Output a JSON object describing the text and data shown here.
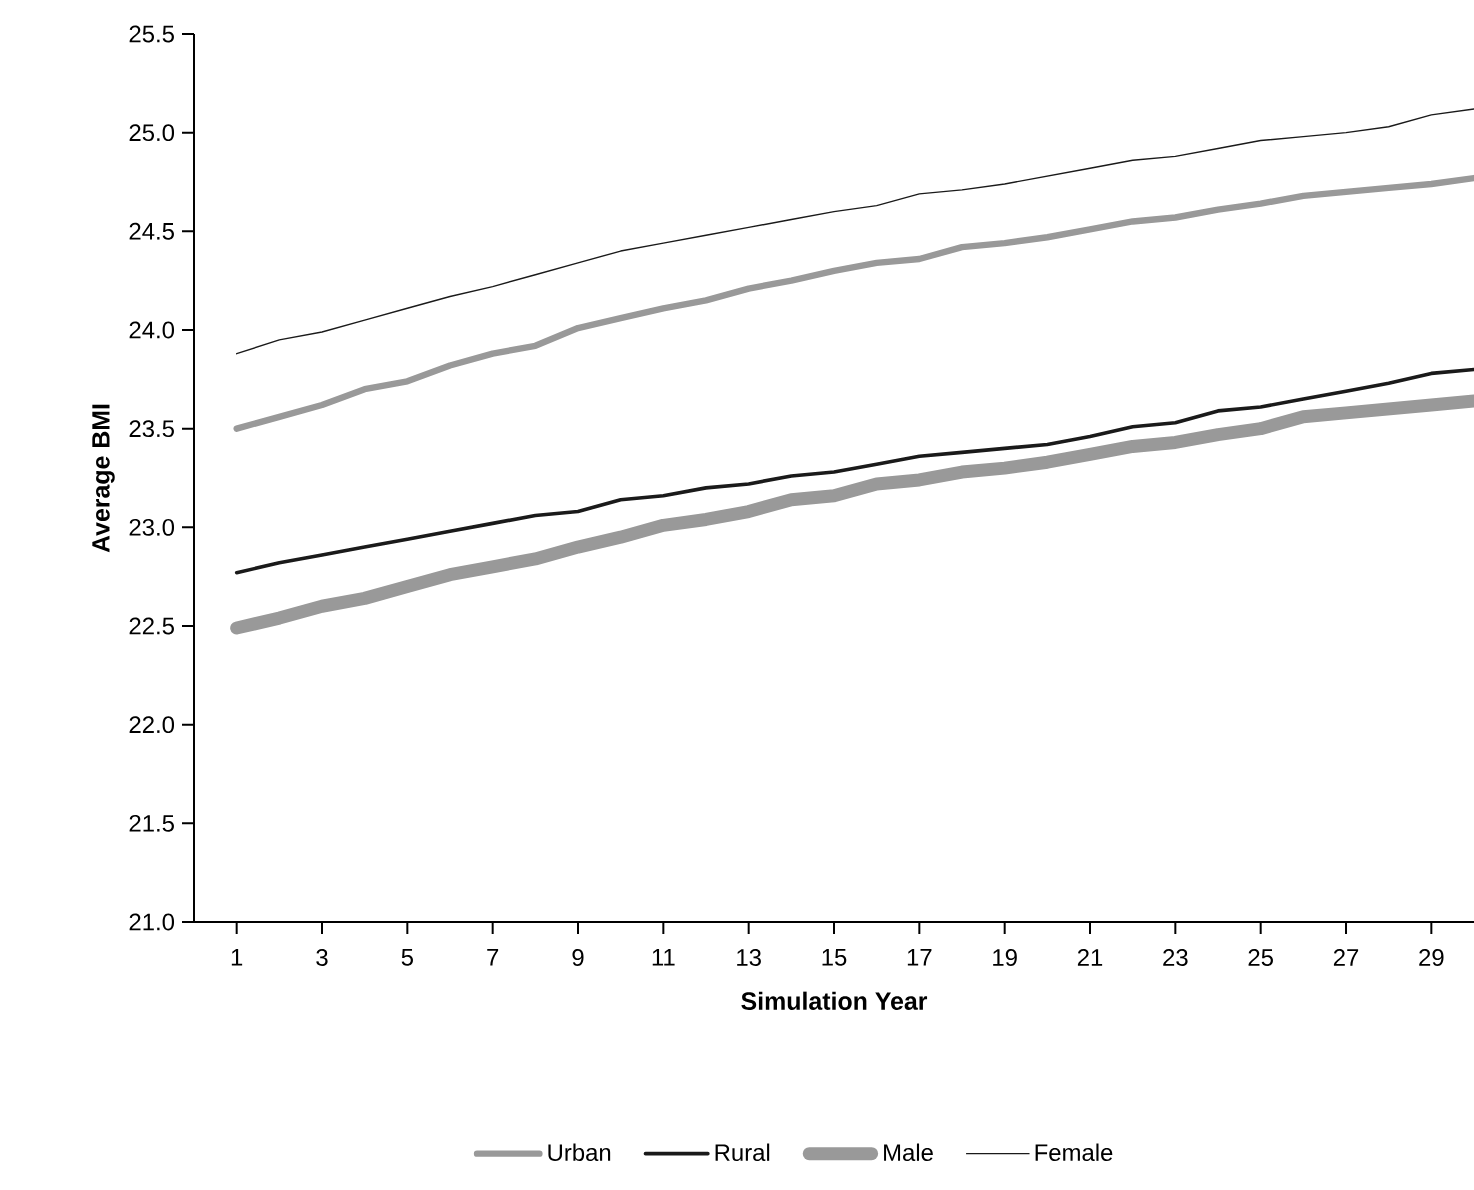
{
  "chart_data": {
    "type": "line",
    "xlabel": "Simulation Year",
    "ylabel": "Average BMI",
    "x": [
      1,
      2,
      3,
      4,
      5,
      6,
      7,
      8,
      9,
      10,
      11,
      12,
      13,
      14,
      15,
      16,
      17,
      18,
      19,
      20,
      21,
      22,
      23,
      24,
      25,
      26,
      27,
      28,
      29,
      30
    ],
    "xlim": [
      0,
      30
    ],
    "xticks": [
      1,
      3,
      5,
      7,
      9,
      11,
      13,
      15,
      17,
      19,
      21,
      23,
      25,
      27,
      29
    ],
    "ylim": [
      21.0,
      25.5
    ],
    "yticks": [
      {
        "value": 21,
        "label": "21.0"
      },
      21.5,
      {
        "value": 22,
        "label": "22.0"
      },
      22.5,
      {
        "value": 23,
        "label": "23.0"
      },
      23.5,
      {
        "value": 24,
        "label": "24.0"
      },
      24.5,
      {
        "value": 25,
        "label": "25.0"
      },
      25.5
    ],
    "grid": false,
    "legend": "bottom",
    "marker": "none",
    "line_style": "solid",
    "series": [
      {
        "name": "Urban",
        "color": "#999999",
        "values": [
          23.5,
          23.56,
          23.62,
          23.7,
          23.74,
          23.82,
          23.88,
          23.92,
          24.01,
          24.06,
          24.11,
          24.15,
          24.21,
          24.25,
          24.3,
          24.34,
          24.36,
          24.42,
          24.44,
          24.47,
          24.51,
          24.55,
          24.57,
          24.61,
          24.64,
          24.68,
          24.7,
          24.72,
          24.74,
          24.77
        ]
      },
      {
        "name": "Rural",
        "color": "#1a1a1a",
        "values": [
          22.77,
          22.82,
          22.86,
          22.9,
          22.94,
          22.98,
          23.02,
          23.06,
          23.08,
          23.14,
          23.16,
          23.2,
          23.22,
          23.26,
          23.28,
          23.32,
          23.36,
          23.38,
          23.4,
          23.42,
          23.46,
          23.51,
          23.53,
          23.59,
          23.61,
          23.65,
          23.69,
          23.73,
          23.78,
          23.8
        ]
      },
      {
        "name": "Male",
        "color": "#999999",
        "values": [
          22.49,
          22.54,
          22.6,
          22.64,
          22.7,
          22.76,
          22.8,
          22.84,
          22.9,
          22.95,
          23.01,
          23.04,
          23.08,
          23.14,
          23.16,
          23.22,
          23.24,
          23.28,
          23.3,
          23.33,
          23.37,
          23.41,
          23.43,
          23.47,
          23.5,
          23.56,
          23.58,
          23.6,
          23.62,
          23.64
        ]
      },
      {
        "name": "Female",
        "color": "#1a1a1a",
        "values": [
          23.88,
          23.95,
          23.99,
          24.05,
          24.11,
          24.17,
          24.22,
          24.28,
          24.34,
          24.4,
          24.44,
          24.48,
          24.52,
          24.56,
          24.6,
          24.63,
          24.69,
          24.71,
          24.74,
          24.78,
          24.82,
          24.86,
          24.88,
          24.92,
          24.96,
          24.98,
          25.0,
          25.03,
          25.09,
          25.12
        ]
      }
    ]
  }
}
